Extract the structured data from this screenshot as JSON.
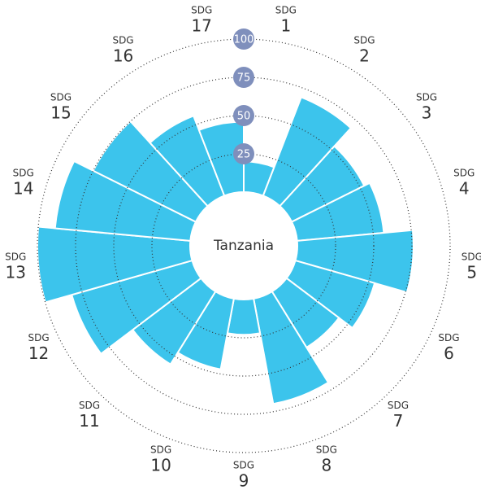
{
  "chart_data": {
    "type": "polar-bar",
    "center_label": "Tanzania",
    "label_prefix": "SDG",
    "categories": [
      "1",
      "2",
      "3",
      "4",
      "5",
      "6",
      "7",
      "8",
      "9",
      "10",
      "11",
      "12",
      "13",
      "14",
      "15",
      "16",
      "17"
    ],
    "values": [
      20,
      69,
      53,
      57,
      76,
      54,
      43,
      70,
      23,
      47,
      56,
      82,
      100,
      89,
      75,
      56,
      46
    ],
    "color": "#3cc4ec",
    "rlim": [
      0,
      100
    ],
    "rticks": [
      25,
      50,
      75,
      100
    ],
    "tick_badge_color": "#7f8fbc"
  }
}
